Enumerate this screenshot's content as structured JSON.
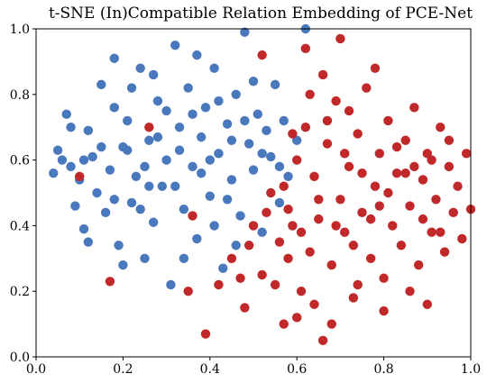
{
  "chart_data": {
    "type": "scatter",
    "title": "t-SNE (In)Compatible Relation Embedding of PCE-Net",
    "xlabel": "",
    "ylabel": "",
    "xlim": [
      0.0,
      1.0
    ],
    "ylim": [
      0.0,
      1.0
    ],
    "xticks": [
      "0.0",
      "0.2",
      "0.4",
      "0.6",
      "0.8",
      "1.0"
    ],
    "yticks": [
      "0.0",
      "0.2",
      "0.4",
      "0.6",
      "0.8",
      "1.0"
    ],
    "grid": false,
    "legend": "none",
    "series": [
      {
        "color": "#4a78bd",
        "points": [
          [
            0.04,
            0.56
          ],
          [
            0.05,
            0.63
          ],
          [
            0.06,
            0.6
          ],
          [
            0.07,
            0.74
          ],
          [
            0.08,
            0.58
          ],
          [
            0.09,
            0.46
          ],
          [
            0.1,
            0.54
          ],
          [
            0.11,
            0.39
          ],
          [
            0.12,
            0.69
          ],
          [
            0.13,
            0.61
          ],
          [
            0.14,
            0.5
          ],
          [
            0.15,
            0.83
          ],
          [
            0.16,
            0.44
          ],
          [
            0.17,
            0.57
          ],
          [
            0.18,
            0.91
          ],
          [
            0.19,
            0.34
          ],
          [
            0.2,
            0.64
          ],
          [
            0.21,
            0.72
          ],
          [
            0.22,
            0.47
          ],
          [
            0.23,
            0.55
          ],
          [
            0.24,
            0.88
          ],
          [
            0.25,
            0.3
          ],
          [
            0.26,
            0.66
          ],
          [
            0.27,
            0.41
          ],
          [
            0.28,
            0.78
          ],
          [
            0.29,
            0.52
          ],
          [
            0.3,
            0.6
          ],
          [
            0.31,
            0.22
          ],
          [
            0.32,
            0.95
          ],
          [
            0.33,
            0.7
          ],
          [
            0.34,
            0.45
          ],
          [
            0.35,
            0.82
          ],
          [
            0.36,
            0.58
          ],
          [
            0.37,
            0.36
          ],
          [
            0.38,
            0.67
          ],
          [
            0.39,
            0.76
          ],
          [
            0.4,
            0.49
          ],
          [
            0.41,
            0.88
          ],
          [
            0.42,
            0.62
          ],
          [
            0.43,
            0.27
          ],
          [
            0.44,
            0.71
          ],
          [
            0.45,
            0.54
          ],
          [
            0.46,
            0.8
          ],
          [
            0.47,
            0.43
          ],
          [
            0.48,
            0.99
          ],
          [
            0.49,
            0.65
          ],
          [
            0.5,
            0.57
          ],
          [
            0.51,
            0.74
          ],
          [
            0.52,
            0.38
          ],
          [
            0.53,
            0.69
          ],
          [
            0.54,
            0.61
          ],
          [
            0.55,
            0.83
          ],
          [
            0.56,
            0.47
          ],
          [
            0.57,
            0.72
          ],
          [
            0.58,
            0.55
          ],
          [
            0.6,
            0.66
          ],
          [
            0.62,
            1.0
          ],
          [
            0.08,
            0.7
          ],
          [
            0.12,
            0.35
          ],
          [
            0.18,
            0.48
          ],
          [
            0.22,
            0.82
          ],
          [
            0.26,
            0.52
          ],
          [
            0.3,
            0.75
          ],
          [
            0.34,
            0.3
          ],
          [
            0.38,
            0.56
          ],
          [
            0.42,
            0.78
          ],
          [
            0.46,
            0.34
          ],
          [
            0.5,
            0.84
          ],
          [
            0.15,
            0.64
          ],
          [
            0.2,
            0.28
          ],
          [
            0.25,
            0.58
          ],
          [
            0.33,
            0.63
          ],
          [
            0.37,
            0.92
          ],
          [
            0.41,
            0.4
          ],
          [
            0.45,
            0.66
          ],
          [
            0.28,
            0.67
          ],
          [
            0.18,
            0.76
          ],
          [
            0.11,
            0.6
          ],
          [
            0.24,
            0.45
          ],
          [
            0.32,
            0.52
          ],
          [
            0.36,
            0.74
          ],
          [
            0.4,
            0.6
          ],
          [
            0.44,
            0.48
          ],
          [
            0.48,
            0.72
          ],
          [
            0.52,
            0.62
          ],
          [
            0.56,
            0.58
          ],
          [
            0.27,
            0.86
          ],
          [
            0.21,
            0.63
          ]
        ]
      },
      {
        "color": "#c1282a",
        "points": [
          [
            0.42,
            0.22
          ],
          [
            0.45,
            0.3
          ],
          [
            0.48,
            0.15
          ],
          [
            0.5,
            0.4
          ],
          [
            0.52,
            0.25
          ],
          [
            0.54,
            0.5
          ],
          [
            0.56,
            0.35
          ],
          [
            0.57,
            0.1
          ],
          [
            0.58,
            0.45
          ],
          [
            0.6,
            0.6
          ],
          [
            0.61,
            0.2
          ],
          [
            0.62,
            0.7
          ],
          [
            0.63,
            0.32
          ],
          [
            0.64,
            0.55
          ],
          [
            0.65,
            0.42
          ],
          [
            0.66,
            0.05
          ],
          [
            0.67,
            0.65
          ],
          [
            0.68,
            0.28
          ],
          [
            0.69,
            0.78
          ],
          [
            0.7,
            0.48
          ],
          [
            0.71,
            0.38
          ],
          [
            0.72,
            0.58
          ],
          [
            0.73,
            0.18
          ],
          [
            0.74,
            0.68
          ],
          [
            0.75,
            0.44
          ],
          [
            0.76,
            0.82
          ],
          [
            0.77,
            0.3
          ],
          [
            0.78,
            0.52
          ],
          [
            0.79,
            0.62
          ],
          [
            0.8,
            0.24
          ],
          [
            0.81,
            0.72
          ],
          [
            0.82,
            0.4
          ],
          [
            0.83,
            0.56
          ],
          [
            0.84,
            0.34
          ],
          [
            0.85,
            0.66
          ],
          [
            0.86,
            0.46
          ],
          [
            0.87,
            0.76
          ],
          [
            0.88,
            0.28
          ],
          [
            0.89,
            0.54
          ],
          [
            0.9,
            0.62
          ],
          [
            0.91,
            0.38
          ],
          [
            0.92,
            0.48
          ],
          [
            0.93,
            0.7
          ],
          [
            0.94,
            0.32
          ],
          [
            0.95,
            0.58
          ],
          [
            0.96,
            0.44
          ],
          [
            0.97,
            0.52
          ],
          [
            0.98,
            0.36
          ],
          [
            1.0,
            0.45
          ],
          [
            0.7,
            0.97
          ],
          [
            0.62,
            0.94
          ],
          [
            0.66,
            0.86
          ],
          [
            0.72,
            0.75
          ],
          [
            0.78,
            0.88
          ],
          [
            0.6,
            0.12
          ],
          [
            0.64,
            0.16
          ],
          [
            0.68,
            0.1
          ],
          [
            0.74,
            0.22
          ],
          [
            0.8,
            0.14
          ],
          [
            0.86,
            0.2
          ],
          [
            0.9,
            0.16
          ],
          [
            0.55,
            0.22
          ],
          [
            0.58,
            0.3
          ],
          [
            0.61,
            0.38
          ],
          [
            0.65,
            0.48
          ],
          [
            0.69,
            0.4
          ],
          [
            0.73,
            0.34
          ],
          [
            0.77,
            0.42
          ],
          [
            0.81,
            0.5
          ],
          [
            0.85,
            0.56
          ],
          [
            0.89,
            0.42
          ],
          [
            0.93,
            0.38
          ],
          [
            0.59,
            0.68
          ],
          [
            0.63,
            0.8
          ],
          [
            0.67,
            0.72
          ],
          [
            0.71,
            0.62
          ],
          [
            0.75,
            0.56
          ],
          [
            0.79,
            0.46
          ],
          [
            0.83,
            0.64
          ],
          [
            0.87,
            0.58
          ],
          [
            0.91,
            0.6
          ],
          [
            0.95,
            0.66
          ],
          [
            0.47,
            0.24
          ],
          [
            0.49,
            0.34
          ],
          [
            0.53,
            0.44
          ],
          [
            0.57,
            0.52
          ],
          [
            0.59,
            0.4
          ],
          [
            0.17,
            0.23
          ],
          [
            0.1,
            0.55
          ],
          [
            0.26,
            0.7
          ],
          [
            0.36,
            0.43
          ],
          [
            0.35,
            0.2
          ],
          [
            0.39,
            0.07
          ],
          [
            0.99,
            0.62
          ],
          [
            0.52,
            0.92
          ]
        ]
      }
    ]
  }
}
